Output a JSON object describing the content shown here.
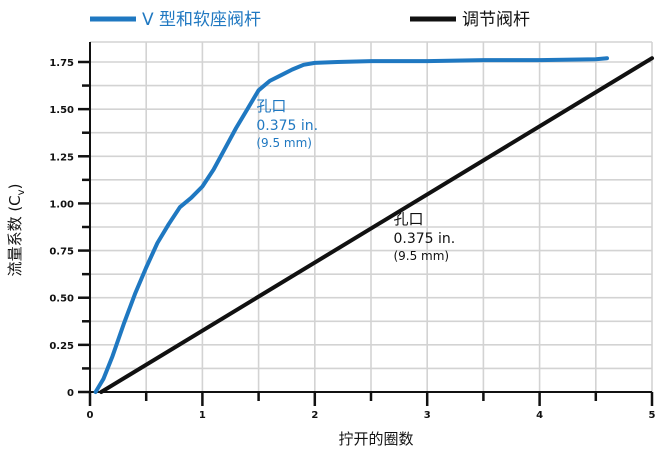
{
  "chart_data": {
    "type": "line",
    "x_axis": {
      "label": "拧开的圈数",
      "range": [
        0,
        5
      ],
      "ticks": [
        0,
        1,
        2,
        3,
        4,
        5
      ],
      "tick_labels": [
        "0",
        "1",
        "2",
        "3",
        "4",
        "5"
      ]
    },
    "y_axis": {
      "label": "流量系数 (Cv)",
      "label_main": "流量系数 (C",
      "label_sub": "v",
      "label_close": ")",
      "range": [
        0,
        1.75
      ],
      "ticks": [
        0,
        0.25,
        0.5,
        0.75,
        1.0,
        1.25,
        1.5,
        1.75
      ],
      "tick_labels": [
        "0",
        "0.25",
        "0.50",
        "0.75",
        "1.00",
        "1.25",
        "1.50",
        "1.75"
      ]
    },
    "grid": true,
    "legend_position": "top",
    "series": [
      {
        "name": "V 型和软座阀杆",
        "color": "#1f78c1",
        "x": [
          0.05,
          0.12,
          0.2,
          0.3,
          0.4,
          0.5,
          0.6,
          0.7,
          0.8,
          0.9,
          1.0,
          1.1,
          1.2,
          1.3,
          1.4,
          1.5,
          1.6,
          1.7,
          1.8,
          1.9,
          2.0,
          2.2,
          2.5,
          3.0,
          3.5,
          4.0,
          4.5,
          4.6
        ],
        "y": [
          0.0,
          0.07,
          0.19,
          0.36,
          0.52,
          0.66,
          0.79,
          0.89,
          0.98,
          1.03,
          1.09,
          1.18,
          1.29,
          1.4,
          1.5,
          1.6,
          1.65,
          1.68,
          1.71,
          1.735,
          1.745,
          1.75,
          1.755,
          1.755,
          1.76,
          1.76,
          1.765,
          1.77
        ]
      },
      {
        "name": "调节阀杆",
        "color": "#111111",
        "x": [
          0.1,
          5.0
        ],
        "y": [
          0.0,
          1.77
        ]
      }
    ],
    "annotations": [
      {
        "series": 0,
        "lines": [
          "孔口",
          "0.375 in.",
          "(9.5 mm)"
        ],
        "x": 1.48,
        "y": 1.49,
        "color": "#1f78c1"
      },
      {
        "series": 1,
        "lines": [
          "孔口",
          "0.375 in.",
          "(9.5 mm)"
        ],
        "x": 2.7,
        "y": 0.89,
        "color": "#111111"
      }
    ]
  }
}
